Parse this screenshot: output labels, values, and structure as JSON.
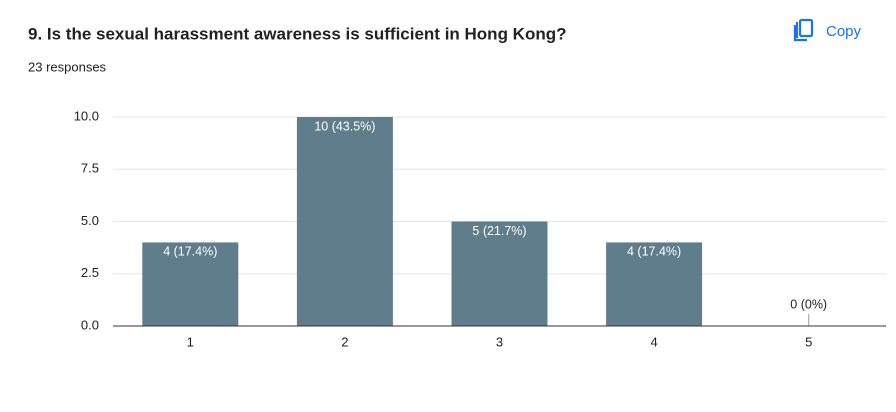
{
  "copy_button": "Copy",
  "chart_data": {
    "type": "bar",
    "title": "9. Is the sexual harassment awareness is sufficient in Hong Kong?",
    "subtitle": "23 responses",
    "categories": [
      "1",
      "2",
      "3",
      "4",
      "5"
    ],
    "values": [
      4,
      10,
      5,
      4,
      0
    ],
    "value_labels": [
      "4 (17.4%)",
      "10 (43.5%)",
      "5 (21.7%)",
      "4 (17.4%)",
      "0 (0%)"
    ],
    "color": "#607d8b",
    "ylim": [
      0,
      10
    ],
    "yticks": [
      {
        "value": 0,
        "label": "0.0"
      },
      2.5,
      {
        "value": 5,
        "label": "5.0"
      },
      7.5,
      {
        "value": 10,
        "label": "10.0"
      }
    ],
    "grid": true
  }
}
